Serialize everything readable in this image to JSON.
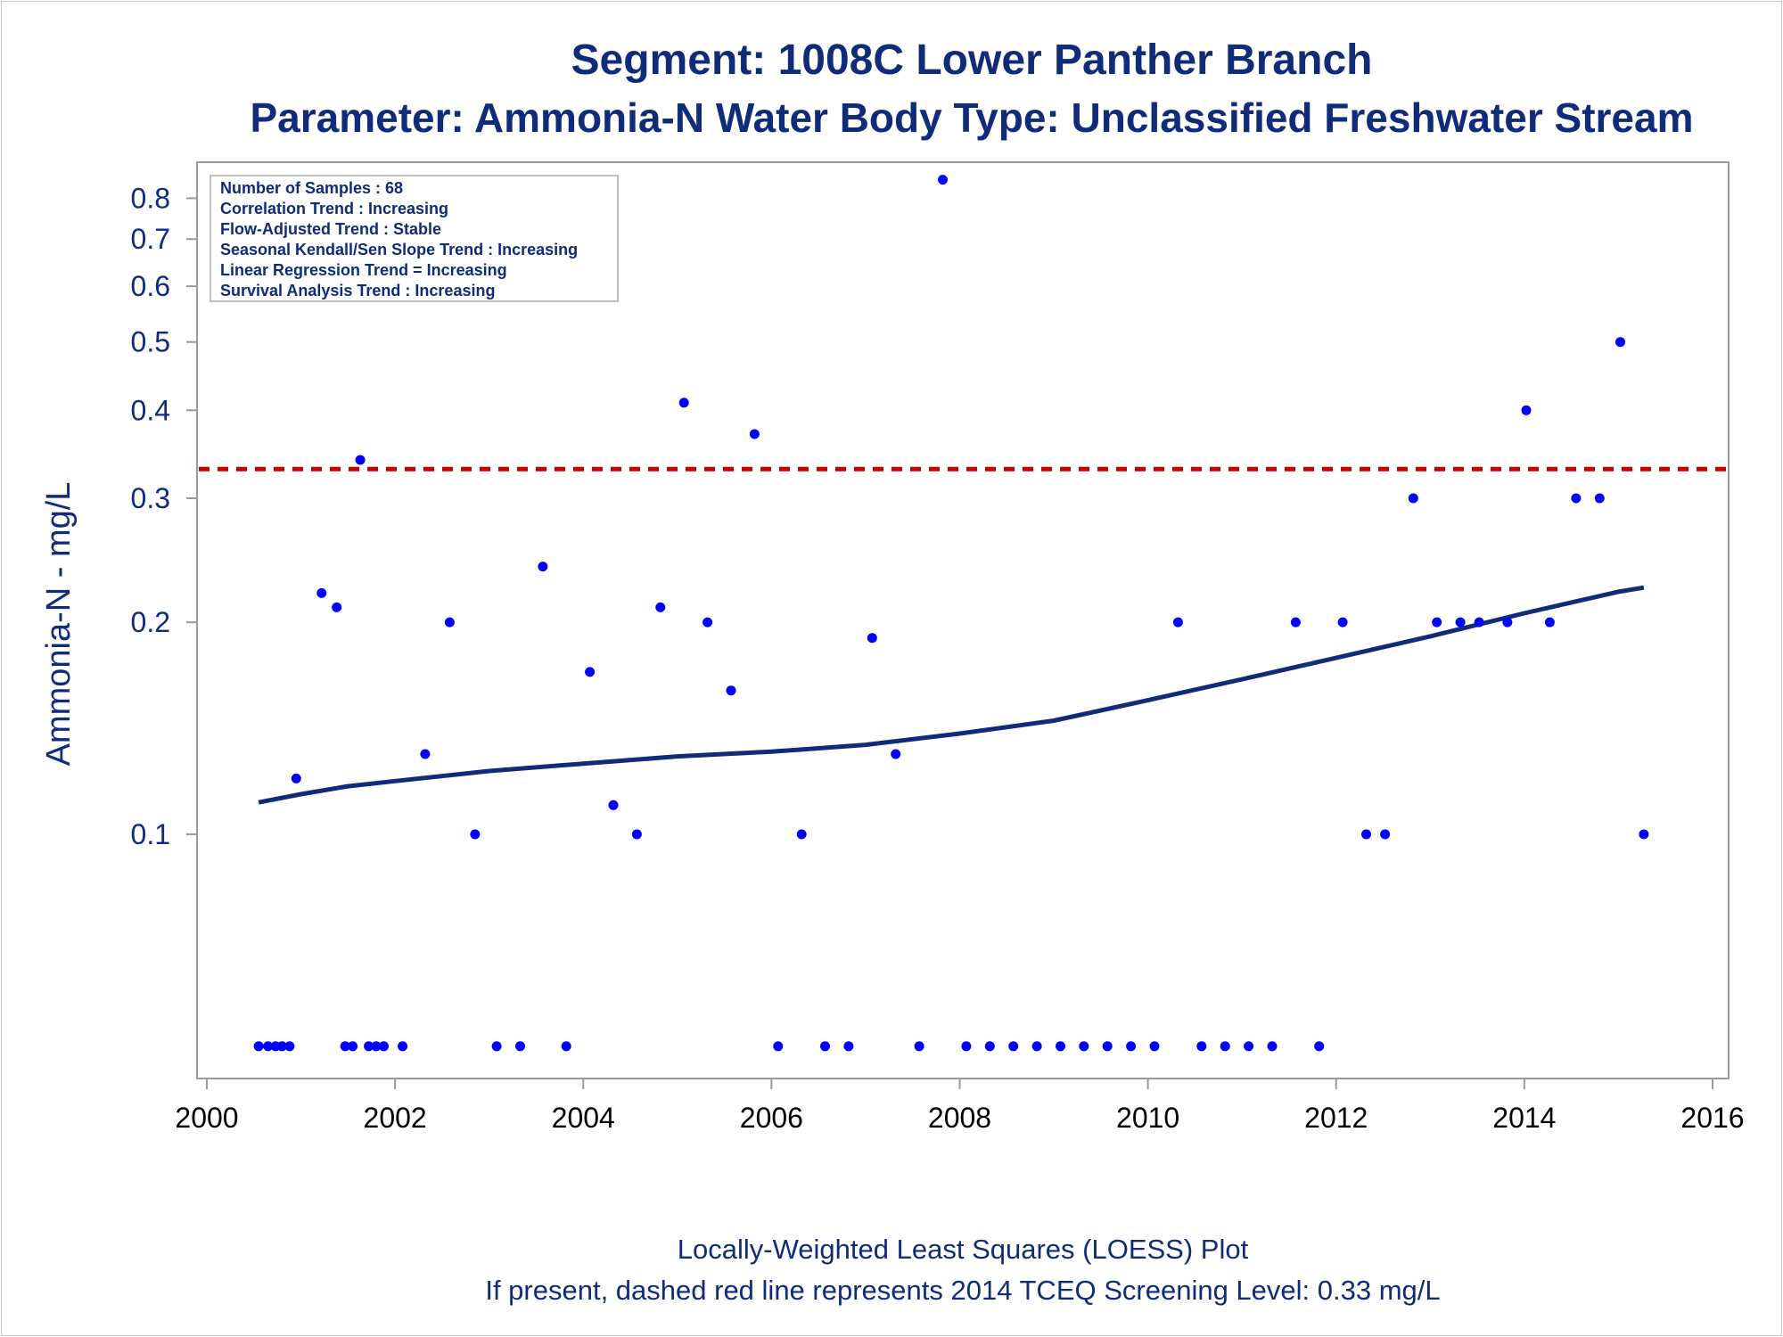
{
  "chart_data": {
    "type": "scatter",
    "title": "Segment: 1008C  Lower Panther Branch",
    "subtitle": "Parameter: Ammonia-N   Water Body Type: Unclassified Freshwater Stream",
    "xlabel": "",
    "ylabel": "Ammonia-N - mg/L",
    "xlim": [
      2000,
      2016
    ],
    "ylim": [
      0.045,
      0.9
    ],
    "yscale": "log",
    "x_ticks": [
      "2000",
      "2002",
      "2004",
      "2006",
      "2008",
      "2010",
      "2012",
      "2014",
      "2016"
    ],
    "y_ticks": [
      "0.1",
      "0.2",
      "0.3",
      "0.4",
      "0.5",
      "0.6",
      "0.7",
      "0.8"
    ],
    "stats_box": [
      "Number of Samples : 68",
      "Correlation Trend : Increasing",
      "Flow-Adjusted Trend : Stable",
      "Seasonal Kendall/Sen Slope Trend : Increasing",
      "Linear Regression Trend = Increasing",
      "Survival Analysis Trend : Increasing"
    ],
    "screening_level": 0.33,
    "screening_color": "#cc0000",
    "point_color": "#0000ff",
    "line_color": "#0f2b7a",
    "points": [
      {
        "x": 2000.55,
        "y": 0.05
      },
      {
        "x": 2000.65,
        "y": 0.05
      },
      {
        "x": 2000.73,
        "y": 0.05
      },
      {
        "x": 2000.8,
        "y": 0.05
      },
      {
        "x": 2000.88,
        "y": 0.05
      },
      {
        "x": 2000.95,
        "y": 0.12
      },
      {
        "x": 2001.22,
        "y": 0.22
      },
      {
        "x": 2001.38,
        "y": 0.21
      },
      {
        "x": 2001.47,
        "y": 0.05
      },
      {
        "x": 2001.55,
        "y": 0.05
      },
      {
        "x": 2001.63,
        "y": 0.34
      },
      {
        "x": 2001.72,
        "y": 0.05
      },
      {
        "x": 2001.8,
        "y": 0.05
      },
      {
        "x": 2001.88,
        "y": 0.05
      },
      {
        "x": 2002.08,
        "y": 0.05
      },
      {
        "x": 2002.32,
        "y": 0.13
      },
      {
        "x": 2002.58,
        "y": 0.2
      },
      {
        "x": 2002.85,
        "y": 0.1
      },
      {
        "x": 2003.08,
        "y": 0.05
      },
      {
        "x": 2003.33,
        "y": 0.05
      },
      {
        "x": 2003.57,
        "y": 0.24
      },
      {
        "x": 2003.82,
        "y": 0.05
      },
      {
        "x": 2004.07,
        "y": 0.17
      },
      {
        "x": 2004.32,
        "y": 0.11
      },
      {
        "x": 2004.57,
        "y": 0.1
      },
      {
        "x": 2004.82,
        "y": 0.21
      },
      {
        "x": 2005.07,
        "y": 0.41
      },
      {
        "x": 2005.32,
        "y": 0.2
      },
      {
        "x": 2005.57,
        "y": 0.16
      },
      {
        "x": 2005.82,
        "y": 0.37
      },
      {
        "x": 2006.07,
        "y": 0.05
      },
      {
        "x": 2006.32,
        "y": 0.1
      },
      {
        "x": 2006.57,
        "y": 0.05
      },
      {
        "x": 2006.82,
        "y": 0.05
      },
      {
        "x": 2007.07,
        "y": 0.19
      },
      {
        "x": 2007.32,
        "y": 0.13
      },
      {
        "x": 2007.57,
        "y": 0.05
      },
      {
        "x": 2007.82,
        "y": 0.85
      },
      {
        "x": 2008.07,
        "y": 0.05
      },
      {
        "x": 2008.32,
        "y": 0.05
      },
      {
        "x": 2008.57,
        "y": 0.05
      },
      {
        "x": 2008.82,
        "y": 0.05
      },
      {
        "x": 2009.07,
        "y": 0.05
      },
      {
        "x": 2009.32,
        "y": 0.05
      },
      {
        "x": 2009.57,
        "y": 0.05
      },
      {
        "x": 2009.82,
        "y": 0.05
      },
      {
        "x": 2010.07,
        "y": 0.05
      },
      {
        "x": 2010.32,
        "y": 0.2
      },
      {
        "x": 2010.57,
        "y": 0.05
      },
      {
        "x": 2010.82,
        "y": 0.05
      },
      {
        "x": 2011.07,
        "y": 0.05
      },
      {
        "x": 2011.32,
        "y": 0.05
      },
      {
        "x": 2011.57,
        "y": 0.2
      },
      {
        "x": 2011.82,
        "y": 0.05
      },
      {
        "x": 2012.07,
        "y": 0.2
      },
      {
        "x": 2012.32,
        "y": 0.1
      },
      {
        "x": 2012.52,
        "y": 0.1
      },
      {
        "x": 2012.82,
        "y": 0.3
      },
      {
        "x": 2013.07,
        "y": 0.2
      },
      {
        "x": 2013.32,
        "y": 0.2
      },
      {
        "x": 2013.52,
        "y": 0.2
      },
      {
        "x": 2013.82,
        "y": 0.2
      },
      {
        "x": 2014.02,
        "y": 0.4
      },
      {
        "x": 2014.27,
        "y": 0.2
      },
      {
        "x": 2014.55,
        "y": 0.3
      },
      {
        "x": 2014.8,
        "y": 0.3
      },
      {
        "x": 2015.02,
        "y": 0.5
      },
      {
        "x": 2015.27,
        "y": 0.1
      }
    ],
    "loess": [
      {
        "x": 2000.55,
        "y": 0.111
      },
      {
        "x": 2001.0,
        "y": 0.114
      },
      {
        "x": 2001.5,
        "y": 0.117
      },
      {
        "x": 2002.0,
        "y": 0.119
      },
      {
        "x": 2003.0,
        "y": 0.123
      },
      {
        "x": 2004.0,
        "y": 0.126
      },
      {
        "x": 2005.0,
        "y": 0.129
      },
      {
        "x": 2006.0,
        "y": 0.131
      },
      {
        "x": 2007.0,
        "y": 0.134
      },
      {
        "x": 2008.0,
        "y": 0.139
      },
      {
        "x": 2009.0,
        "y": 0.145
      },
      {
        "x": 2010.0,
        "y": 0.155
      },
      {
        "x": 2011.0,
        "y": 0.166
      },
      {
        "x": 2012.0,
        "y": 0.178
      },
      {
        "x": 2013.0,
        "y": 0.191
      },
      {
        "x": 2014.0,
        "y": 0.206
      },
      {
        "x": 2015.0,
        "y": 0.221
      },
      {
        "x": 2015.27,
        "y": 0.224
      }
    ],
    "footnotes": [
      "Locally-Weighted Least Squares (LOESS) Plot",
      "If present, dashed red line represents 2014 TCEQ Screening Level: 0.33 mg/L"
    ]
  }
}
